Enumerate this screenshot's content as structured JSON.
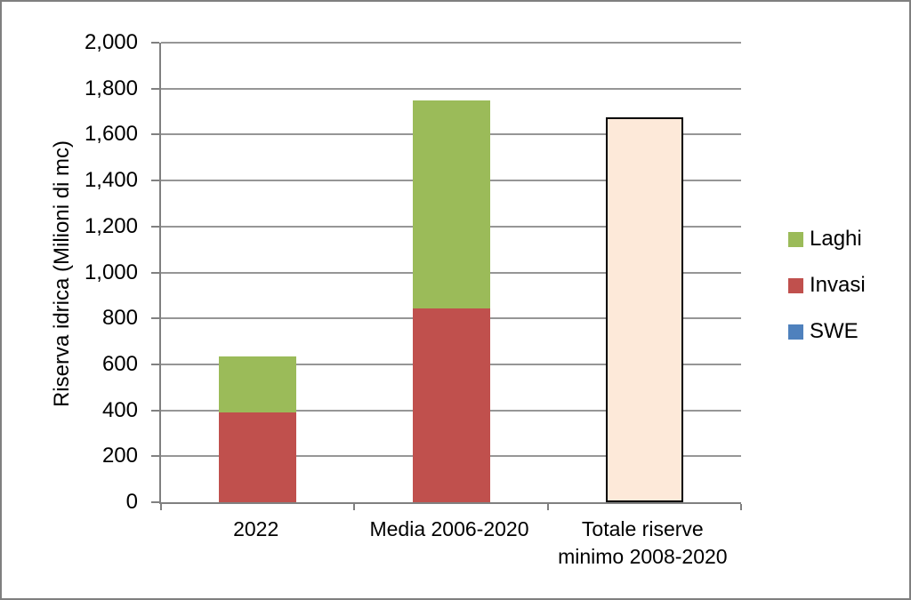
{
  "chart_data": {
    "type": "bar",
    "stacked": true,
    "title": "",
    "xlabel": "",
    "ylabel": "Riserva idrica  (Milioni di mc)",
    "ylim": [
      0,
      2000
    ],
    "ytick_step": 200,
    "ytick_labels": [
      "0",
      "200",
      "400",
      "600",
      "800",
      "1,000",
      "1,200",
      "1,400",
      "1,600",
      "1,800",
      "2,000"
    ],
    "grid": true,
    "categories": [
      "2022",
      "Media 2006-2020",
      "Totale riserve\nminimo 2008-2020"
    ],
    "series": [
      {
        "name": "SWE",
        "color": "#4F81BD",
        "values": [
          0,
          0,
          0
        ]
      },
      {
        "name": "Invasi",
        "color": "#C0504D",
        "values": [
          390,
          845,
          0
        ]
      },
      {
        "name": "Laghi",
        "color": "#9BBB59",
        "values": [
          245,
          905,
          0
        ]
      },
      {
        "name": "Totale riserve minimo",
        "color": "#FDE9D9",
        "border_color": "#000000",
        "values": [
          0,
          0,
          1675
        ],
        "show_in_legend": false
      }
    ],
    "legend": {
      "position": "right",
      "entries": [
        {
          "label": "Laghi",
          "color": "#9BBB59"
        },
        {
          "label": "Invasi",
          "color": "#C0504D"
        },
        {
          "label": "SWE",
          "color": "#4F81BD"
        }
      ]
    },
    "colors": {
      "background": "#FFFFFF",
      "outer_border": "#7F7F7F",
      "gridline": "#969696",
      "axis": "#808080",
      "text": "#000000"
    }
  }
}
